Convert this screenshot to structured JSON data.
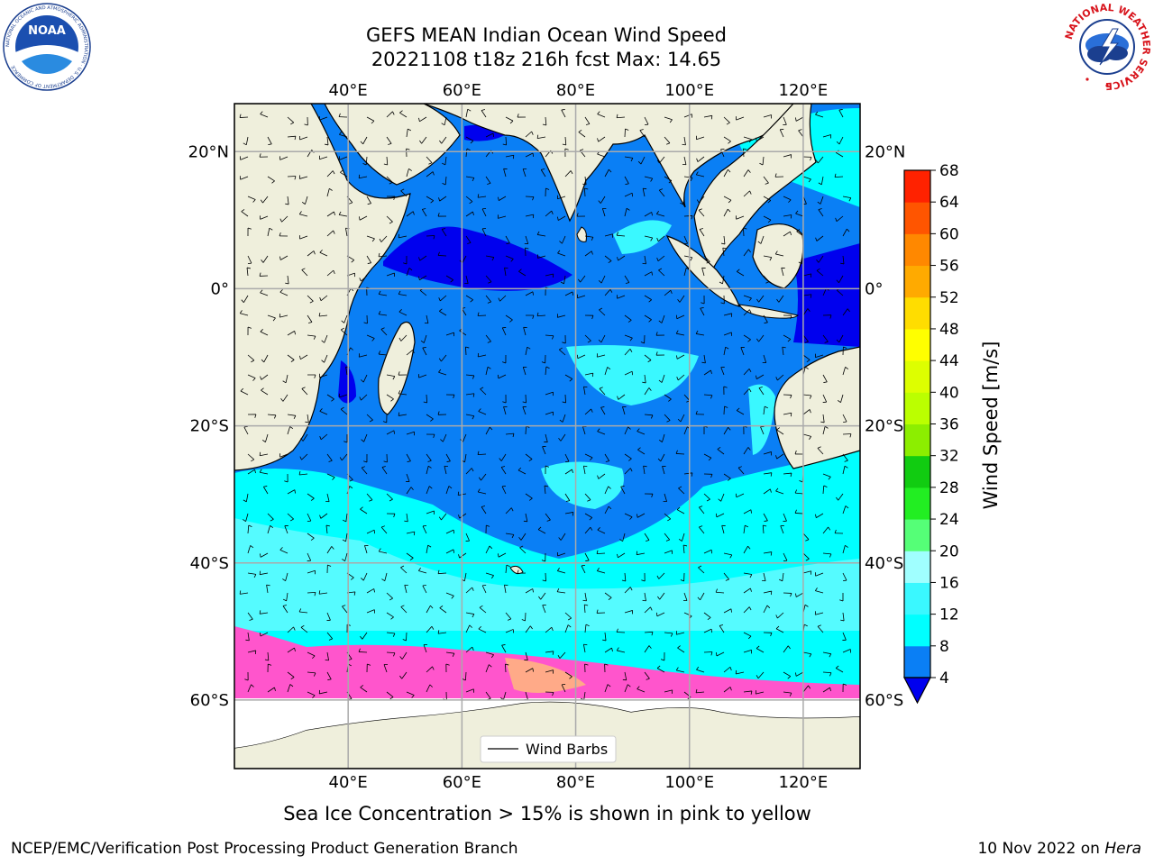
{
  "header": {
    "title_line1": "GEFS MEAN Indian Ocean Wind Speed",
    "title_line2": "20221108 t18z 216h fcst   Max: 14.65"
  },
  "map": {
    "lon_range": [
      20,
      130
    ],
    "lat_range": [
      -70,
      27
    ],
    "lon_ticks": [
      {
        "value": 40,
        "label": "40°E"
      },
      {
        "value": 60,
        "label": "60°E"
      },
      {
        "value": 80,
        "label": "80°E"
      },
      {
        "value": 100,
        "label": "100°E"
      },
      {
        "value": 120,
        "label": "120°E"
      }
    ],
    "lat_ticks": [
      {
        "value": 20,
        "label": "20°N"
      },
      {
        "value": 0,
        "label": "0°"
      },
      {
        "value": -20,
        "label": "20°S"
      },
      {
        "value": -40,
        "label": "40°S"
      },
      {
        "value": -60,
        "label": "60°S"
      }
    ],
    "grid": true,
    "legend_label": "Wind Barbs",
    "land_color": "#efefdc",
    "ice_color": "#ff55cc"
  },
  "colorbar": {
    "label": "Wind Speed [m/s]",
    "levels": [
      4,
      8,
      12,
      16,
      20,
      24,
      28,
      32,
      36,
      40,
      44,
      48,
      52,
      56,
      60,
      64,
      68
    ],
    "colors": [
      "#0a7ff5",
      "#00ffff",
      "#3af8ff",
      "#a0ffff",
      "#55ff77",
      "#22ee22",
      "#11cc11",
      "#8cee00",
      "#bbff00",
      "#ddff00",
      "#ffff00",
      "#ffdd00",
      "#ffaa00",
      "#ff8800",
      "#ff5500",
      "#ff2200"
    ],
    "under_color": "#0000ee"
  },
  "footer": {
    "caption": "Sea Ice Concentration > 15% is shown in pink to yellow",
    "credit": "NCEP/EMC/Verification Post Processing Product Generation Branch",
    "date": "10 Nov 2022 on",
    "host": "Hera"
  },
  "logos": {
    "noaa": "NOAA",
    "noaa_ring": "NATIONAL OCEANIC AND ATMOSPHERIC ADMINISTRATION · U.S. DEPARTMENT OF COMMERCE",
    "nws_ring": "NATIONAL WEATHER SERVICE"
  }
}
